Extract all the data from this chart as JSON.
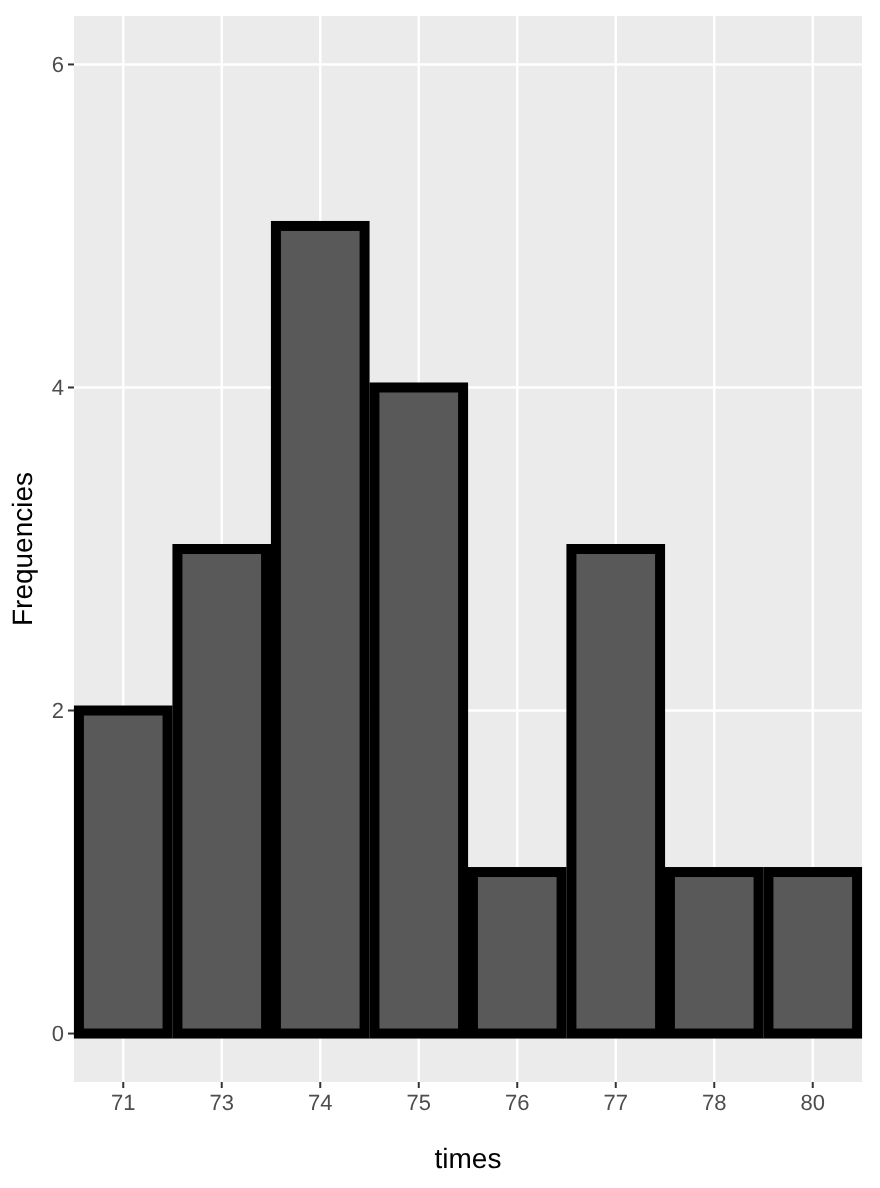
{
  "chart_data": {
    "type": "bar",
    "xlabel": "times",
    "ylabel": "Frequencies",
    "categories": [
      "71",
      "73",
      "74",
      "75",
      "76",
      "77",
      "78",
      "80"
    ],
    "values": [
      2,
      3,
      5,
      4,
      1,
      3,
      1,
      1
    ],
    "color": "#595959",
    "ylim": [
      -0.3,
      6.3
    ],
    "yticks": [
      0,
      2,
      4,
      6
    ],
    "grid": true
  }
}
